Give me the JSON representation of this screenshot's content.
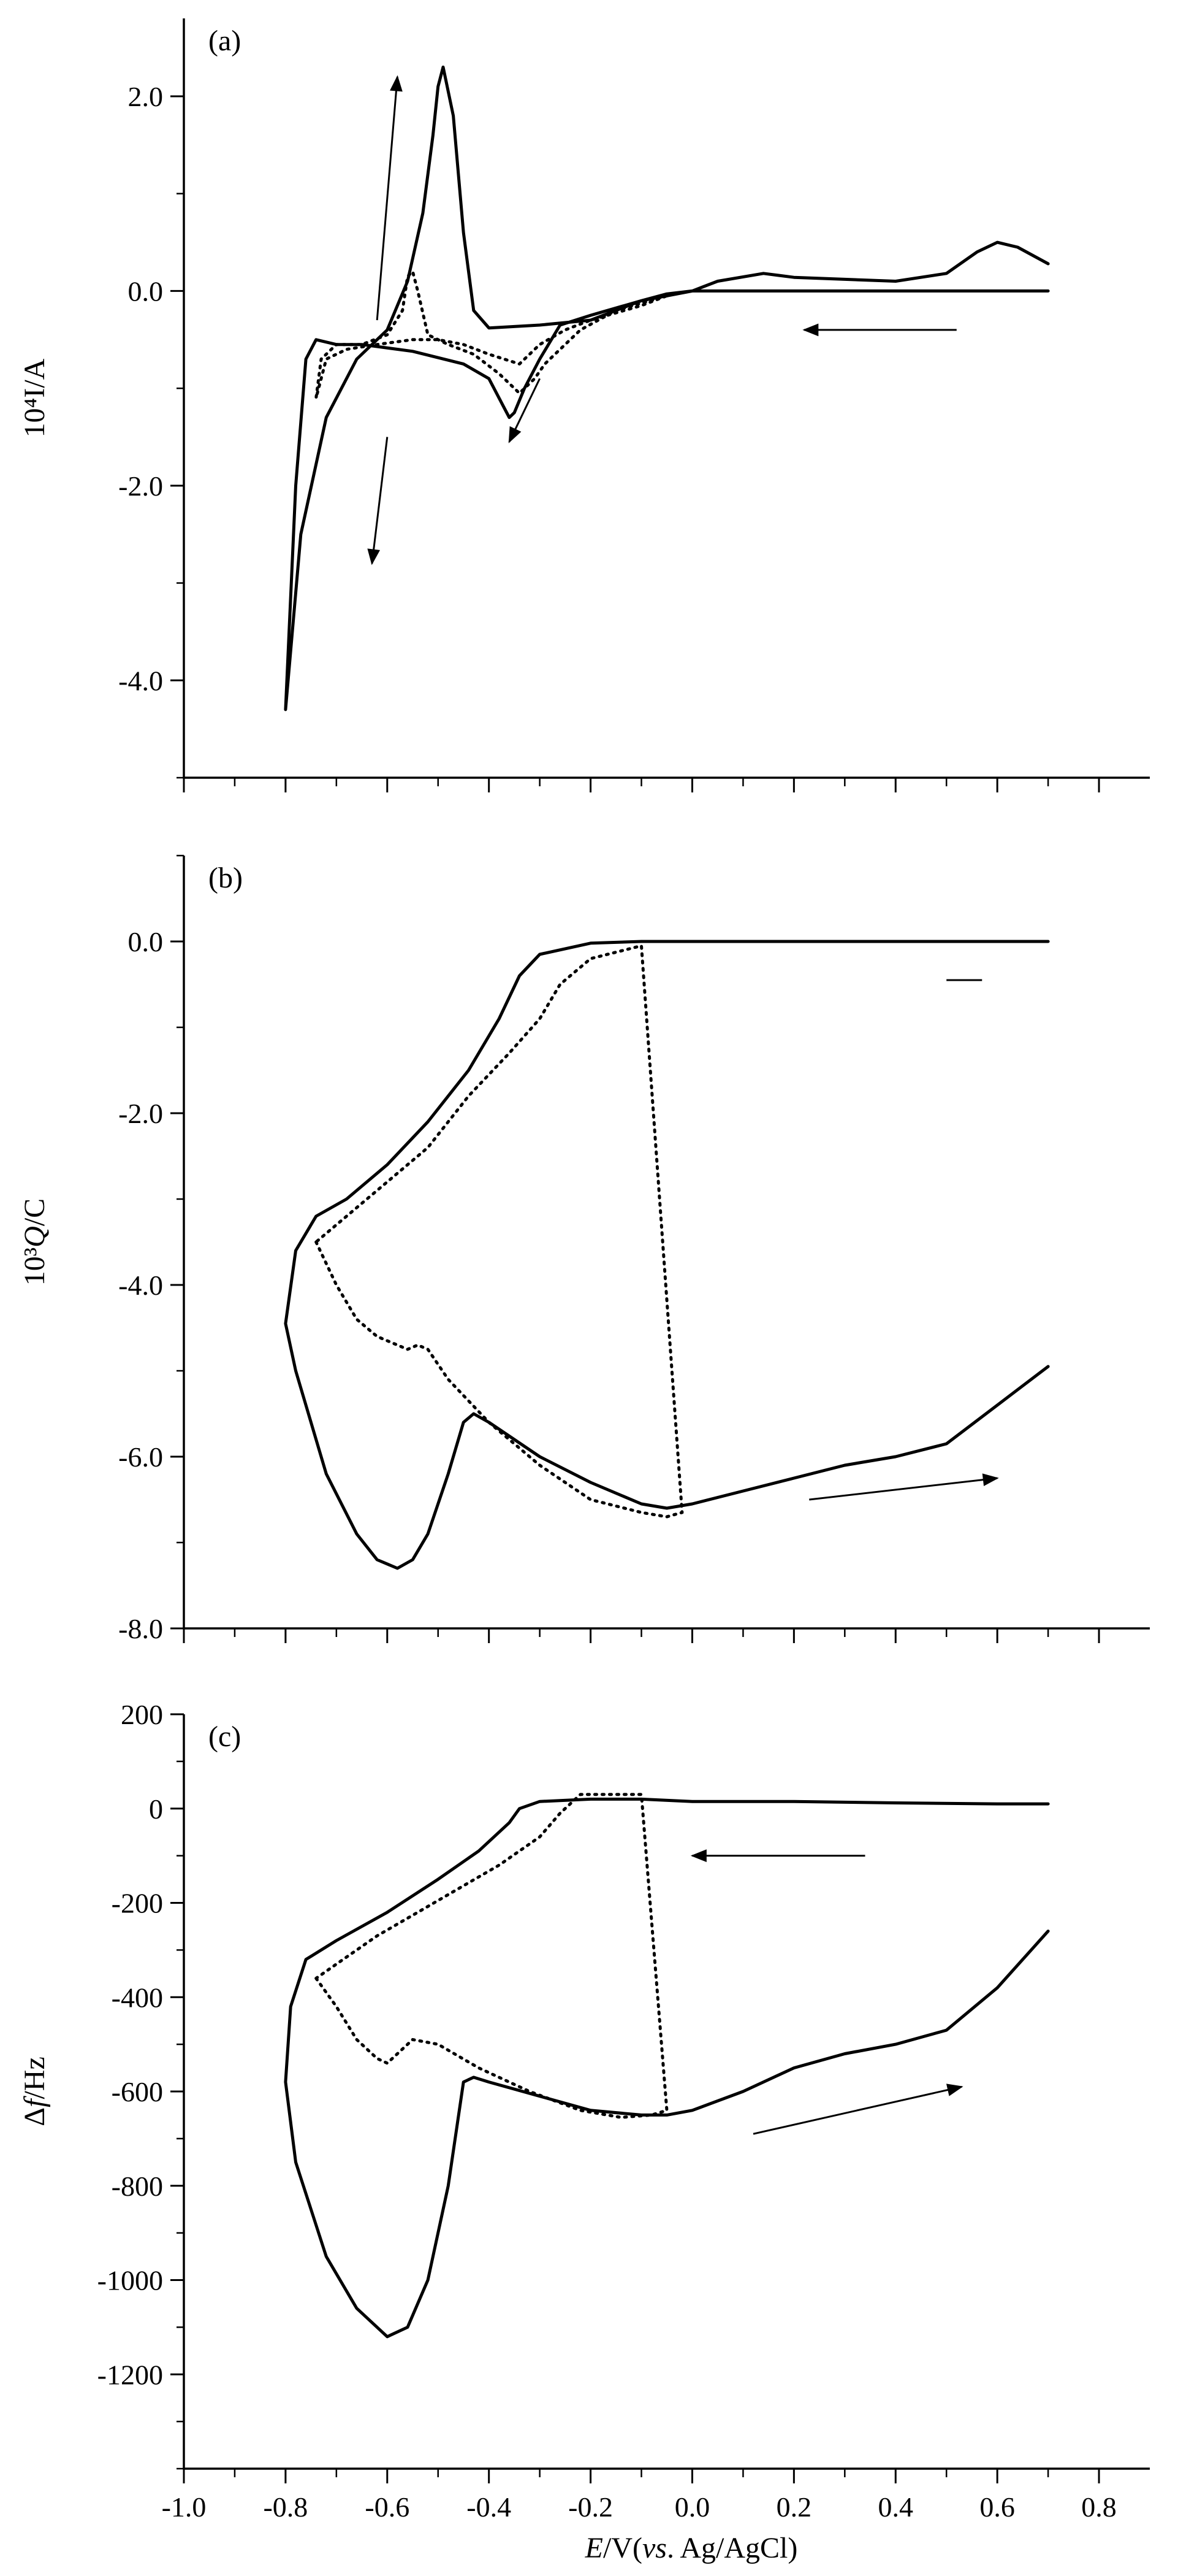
{
  "x_axis": {
    "title_italic": "E",
    "title_rest": "/V(",
    "title_vs": "vs",
    "title_ref": ". Ag/AgCl)",
    "range": [
      -1.0,
      0.9
    ],
    "ticks": [
      -1.0,
      -0.8,
      -0.6,
      -0.4,
      -0.2,
      0.0,
      0.2,
      0.4,
      0.6,
      0.8
    ],
    "tick_labels": [
      "-1.0",
      "-0.8",
      "-0.6",
      "-0.4",
      "-0.2",
      "0.0",
      "0.2",
      "0.4",
      "0.6",
      "0.8"
    ]
  },
  "chart_data": [
    {
      "type": "line",
      "panel_label": "(a)",
      "ylabel": "10⁴I/A",
      "ylim": [
        -5.0,
        2.8
      ],
      "yticks": [
        -4.0,
        -2.0,
        0.0,
        2.0
      ],
      "ytick_labels": [
        "-4.0",
        "-2.0",
        "0.0",
        "2.0"
      ],
      "series": [
        {
          "style": "solid",
          "x": [
            0.7,
            0.64,
            0.6,
            0.56,
            0.5,
            0.4,
            0.3,
            0.2,
            0.14,
            0.05,
            0.0,
            -0.05,
            -0.1,
            -0.2,
            -0.26,
            -0.3,
            -0.33,
            -0.35,
            -0.36,
            -0.37,
            -0.4,
            -0.45,
            -0.55,
            -0.65,
            -0.7,
            -0.74,
            -0.76,
            -0.78,
            -0.8,
            -0.77,
            -0.72,
            -0.66,
            -0.6,
            -0.56,
            -0.53,
            -0.51,
            -0.5,
            -0.49,
            -0.47,
            -0.45,
            -0.43,
            -0.4,
            -0.3,
            -0.2,
            -0.1,
            0.0,
            0.2,
            0.4,
            0.6,
            0.7
          ],
          "y": [
            0.28,
            0.45,
            0.5,
            0.4,
            0.18,
            0.1,
            0.12,
            0.14,
            0.18,
            0.1,
            0.0,
            -0.03,
            -0.1,
            -0.25,
            -0.35,
            -0.7,
            -1.0,
            -1.25,
            -1.3,
            -1.2,
            -0.9,
            -0.75,
            -0.62,
            -0.55,
            -0.55,
            -0.5,
            -0.7,
            -2.0,
            -4.3,
            -2.5,
            -1.3,
            -0.7,
            -0.4,
            0.1,
            0.8,
            1.6,
            2.1,
            2.3,
            1.8,
            0.6,
            -0.2,
            -0.38,
            -0.35,
            -0.3,
            -0.1,
            0.0,
            0.0,
            0.0,
            0.0,
            0.0
          ]
        },
        {
          "style": "dotted",
          "x": [
            -0.05,
            -0.15,
            -0.22,
            -0.26,
            -0.29,
            -0.31,
            -0.34,
            -0.38,
            -0.43,
            -0.48,
            -0.52,
            -0.54,
            -0.55,
            -0.56,
            -0.57,
            -0.6,
            -0.65,
            -0.7,
            -0.73,
            -0.74,
            -0.72,
            -0.68,
            -0.62,
            -0.55,
            -0.5,
            -0.45,
            -0.4,
            -0.34,
            -0.3,
            -0.25,
            -0.2,
            -0.1,
            -0.05
          ],
          "y": [
            -0.05,
            -0.2,
            -0.4,
            -0.6,
            -0.75,
            -0.9,
            -1.05,
            -0.85,
            -0.65,
            -0.55,
            -0.45,
            0.0,
            0.2,
            0.15,
            -0.2,
            -0.45,
            -0.55,
            -0.55,
            -0.7,
            -1.1,
            -0.7,
            -0.6,
            -0.55,
            -0.5,
            -0.5,
            -0.55,
            -0.65,
            -0.75,
            -0.55,
            -0.4,
            -0.3,
            -0.15,
            -0.05
          ]
        }
      ],
      "arrows": [
        {
          "from": [
            -0.62,
            -0.3
          ],
          "to": [
            -0.58,
            2.2
          ]
        },
        {
          "from": [
            -0.6,
            -1.5
          ],
          "to": [
            -0.63,
            -2.8
          ]
        },
        {
          "from": [
            -0.3,
            -0.9
          ],
          "to": [
            -0.36,
            -1.55
          ]
        },
        {
          "from": [
            0.52,
            -0.4
          ],
          "to": [
            0.22,
            -0.4
          ]
        }
      ]
    },
    {
      "type": "line",
      "panel_label": "(b)",
      "ylabel_prefix": "10³",
      "ylabel_italic": "Q",
      "ylabel_suffix": "/C",
      "ylim": [
        -8.0,
        1.0
      ],
      "yticks": [
        -8.0,
        -6.0,
        -4.0,
        -2.0,
        0.0
      ],
      "ytick_labels": [
        "-8.0",
        "-6.0",
        "-4.0",
        "-2.0",
        "0.0"
      ],
      "series": [
        {
          "style": "solid",
          "x": [
            0.7,
            0.6,
            0.5,
            0.4,
            0.3,
            0.2,
            0.1,
            0.0,
            -0.05,
            -0.1,
            -0.2,
            -0.3,
            -0.4,
            -0.43,
            -0.45,
            -0.48,
            -0.52,
            -0.55,
            -0.58,
            -0.62,
            -0.66,
            -0.72,
            -0.78,
            -0.8,
            -0.78,
            -0.74,
            -0.68,
            -0.6,
            -0.52,
            -0.44,
            -0.38,
            -0.34,
            -0.3,
            -0.2,
            -0.1,
            0.0,
            0.2,
            0.4,
            0.6,
            0.7
          ],
          "y": [
            -4.95,
            -5.4,
            -5.85,
            -6.0,
            -6.1,
            -6.25,
            -6.4,
            -6.55,
            -6.6,
            -6.55,
            -6.3,
            -6.0,
            -5.6,
            -5.5,
            -5.6,
            -6.2,
            -6.9,
            -7.2,
            -7.3,
            -7.2,
            -6.9,
            -6.2,
            -5.0,
            -4.45,
            -3.6,
            -3.2,
            -3.0,
            -2.6,
            -2.1,
            -1.5,
            -0.9,
            -0.4,
            -0.15,
            -0.02,
            0.0,
            0.0,
            0.0,
            0.0,
            0.0,
            0.0
          ]
        },
        {
          "style": "dotted",
          "x": [
            -0.74,
            -0.7,
            -0.66,
            -0.62,
            -0.58,
            -0.56,
            -0.54,
            -0.52,
            -0.48,
            -0.4,
            -0.3,
            -0.2,
            -0.1,
            -0.05,
            -0.02,
            -0.1,
            -0.2,
            -0.26,
            -0.3,
            -0.36,
            -0.44,
            -0.52,
            -0.6,
            -0.68,
            -0.74
          ],
          "y": [
            -3.5,
            -4.0,
            -4.4,
            -4.6,
            -4.7,
            -4.75,
            -4.7,
            -4.75,
            -5.1,
            -5.6,
            -6.1,
            -6.5,
            -6.65,
            -6.7,
            -6.65,
            -0.05,
            -0.2,
            -0.5,
            -0.9,
            -1.3,
            -1.8,
            -2.4,
            -2.8,
            -3.2,
            -3.5
          ]
        }
      ],
      "arrows": [
        {
          "from": [
            0.23,
            -6.5
          ],
          "to": [
            0.6,
            -6.25
          ]
        }
      ],
      "segments": [
        {
          "from": [
            0.5,
            -0.45
          ],
          "to": [
            0.57,
            -0.45
          ]
        }
      ]
    },
    {
      "type": "line",
      "panel_label": "(c)",
      "ylabel_prefix": "Δ",
      "ylabel_italic": "f",
      "ylabel_suffix": "/Hz",
      "ylim": [
        -1400,
        200
      ],
      "yticks": [
        -1200,
        -1000,
        -800,
        -600,
        -400,
        -200,
        0,
        200
      ],
      "ytick_labels": [
        "-1200",
        "-1000",
        "-800",
        "-600",
        "-400",
        "-200",
        "0",
        "200"
      ],
      "series": [
        {
          "style": "solid",
          "x": [
            0.7,
            0.6,
            0.5,
            0.4,
            0.3,
            0.2,
            0.1,
            0.0,
            -0.05,
            -0.1,
            -0.2,
            -0.3,
            -0.4,
            -0.43,
            -0.45,
            -0.48,
            -0.52,
            -0.56,
            -0.6,
            -0.66,
            -0.72,
            -0.78,
            -0.8,
            -0.79,
            -0.76,
            -0.7,
            -0.6,
            -0.5,
            -0.42,
            -0.36,
            -0.34,
            -0.3,
            -0.2,
            -0.1,
            0.0,
            0.2,
            0.4,
            0.6,
            0.7
          ],
          "y": [
            -260,
            -380,
            -470,
            -500,
            -520,
            -550,
            -600,
            -640,
            -650,
            -650,
            -640,
            -610,
            -580,
            -570,
            -580,
            -800,
            -1000,
            -1100,
            -1120,
            -1060,
            -950,
            -750,
            -580,
            -420,
            -320,
            -280,
            -220,
            -150,
            -90,
            -30,
            0,
            15,
            20,
            20,
            15,
            15,
            12,
            10,
            10
          ]
        },
        {
          "style": "dotted",
          "x": [
            -0.74,
            -0.7,
            -0.66,
            -0.62,
            -0.6,
            -0.58,
            -0.55,
            -0.5,
            -0.42,
            -0.32,
            -0.22,
            -0.14,
            -0.08,
            -0.05,
            -0.1,
            -0.16,
            -0.22,
            -0.26,
            -0.3,
            -0.38,
            -0.46,
            -0.54,
            -0.62,
            -0.7,
            -0.74
          ],
          "y": [
            -360,
            -420,
            -490,
            -530,
            -540,
            -520,
            -490,
            -500,
            -550,
            -600,
            -640,
            -655,
            -650,
            -640,
            30,
            30,
            30,
            -10,
            -60,
            -120,
            -170,
            -220,
            -270,
            -330,
            -360
          ]
        }
      ],
      "arrows": [
        {
          "from": [
            0.12,
            -690
          ],
          "to": [
            0.53,
            -590
          ]
        },
        {
          "from": [
            0.34,
            -100
          ],
          "to": [
            0.0,
            -100
          ]
        }
      ]
    }
  ]
}
